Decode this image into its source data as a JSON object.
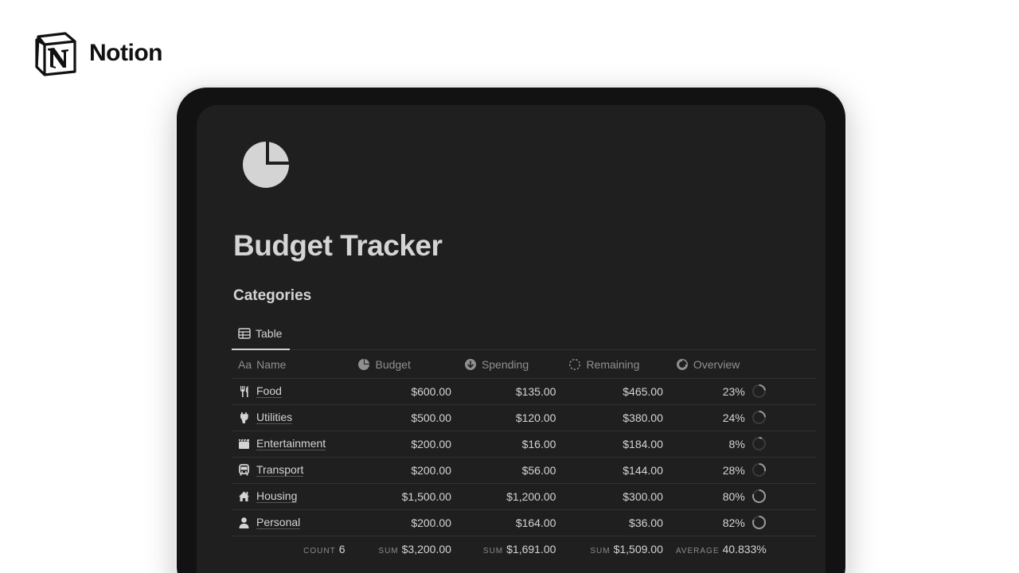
{
  "brand": {
    "name": "Notion",
    "logo_icon": "notion-logo-icon"
  },
  "page": {
    "icon": "pie-chart-icon",
    "title": "Budget Tracker",
    "section": "Categories"
  },
  "view": {
    "tab_label": "Table",
    "tab_icon": "table-icon"
  },
  "columns": {
    "name": {
      "prefix": "Aa",
      "label": "Name"
    },
    "budget": {
      "label": "Budget",
      "icon": "pie-chart-icon"
    },
    "spending": {
      "label": "Spending",
      "icon": "arrow-down-circle-icon"
    },
    "remaining": {
      "label": "Remaining",
      "icon": "dashed-circle-icon"
    },
    "overview": {
      "label": "Overview",
      "icon": "progress-ring-icon"
    }
  },
  "rows": [
    {
      "name": "Food",
      "icon": "fork-knife-icon",
      "budget": "$600.00",
      "spending": "$135.00",
      "remaining": "$465.00",
      "overview": "23%",
      "progress": 0.23
    },
    {
      "name": "Utilities",
      "icon": "plug-icon",
      "budget": "$500.00",
      "spending": "$120.00",
      "remaining": "$380.00",
      "overview": "24%",
      "progress": 0.24
    },
    {
      "name": "Entertainment",
      "icon": "clapperboard-icon",
      "budget": "$200.00",
      "spending": "$16.00",
      "remaining": "$184.00",
      "overview": "8%",
      "progress": 0.08
    },
    {
      "name": "Transport",
      "icon": "bus-icon",
      "budget": "$200.00",
      "spending": "$56.00",
      "remaining": "$144.00",
      "overview": "28%",
      "progress": 0.28
    },
    {
      "name": "Housing",
      "icon": "house-icon",
      "budget": "$1,500.00",
      "spending": "$1,200.00",
      "remaining": "$300.00",
      "overview": "80%",
      "progress": 0.8
    },
    {
      "name": "Personal",
      "icon": "person-icon",
      "budget": "$200.00",
      "spending": "$164.00",
      "remaining": "$36.00",
      "overview": "82%",
      "progress": 0.82
    }
  ],
  "footer": {
    "count": {
      "label": "COUNT",
      "value": "6"
    },
    "budget": {
      "label": "SUM",
      "value": "$3,200.00"
    },
    "spending": {
      "label": "SUM",
      "value": "$1,691.00"
    },
    "remaining": {
      "label": "SUM",
      "value": "$1,509.00"
    },
    "overview": {
      "label": "AVERAGE",
      "value": "40.833%"
    }
  },
  "colors": {
    "screen_bg": "#1f1f1f",
    "text": "#d4d4d4",
    "muted": "#8f8f8f",
    "ring_track": "#3a3a3a",
    "ring_fill": "#9a9a9a"
  }
}
